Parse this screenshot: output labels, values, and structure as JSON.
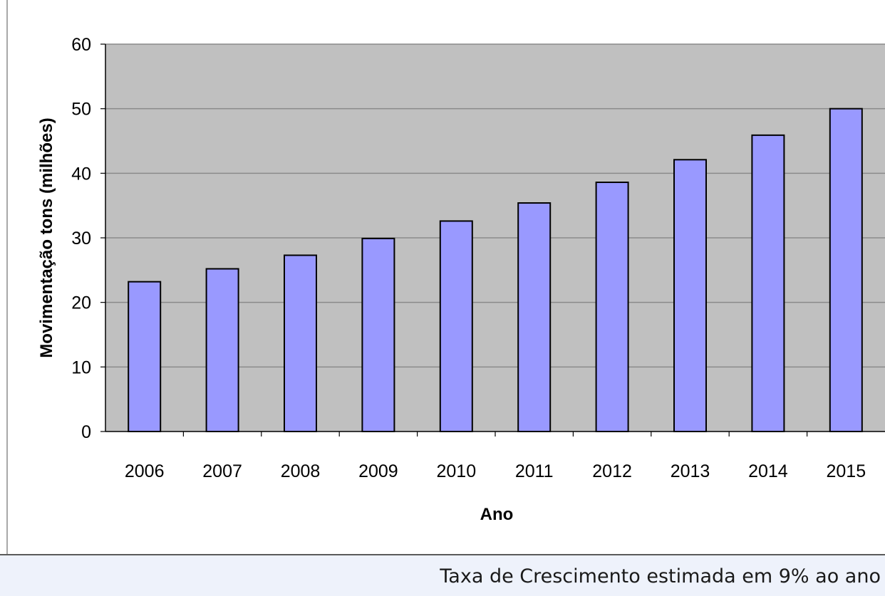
{
  "chart_data": {
    "type": "bar",
    "title": "",
    "xlabel": "Ano",
    "ylabel": "Movimentação tons (milhões)",
    "categories": [
      "2006",
      "2007",
      "2008",
      "2009",
      "2010",
      "2011",
      "2012",
      "2013",
      "2014",
      "2015"
    ],
    "values": [
      23.2,
      25.2,
      27.3,
      29.9,
      32.6,
      35.4,
      38.6,
      42.1,
      45.9,
      50.0
    ],
    "ylim": [
      0,
      60
    ],
    "yticks": [
      "0",
      "10",
      "20",
      "30",
      "40",
      "50",
      "60"
    ],
    "grid": true,
    "colors": {
      "plot_background": "#c0c0c0",
      "bar_fill": "#9999ff",
      "bar_stroke": "#000000",
      "gridline": "#8a8a8a"
    }
  },
  "footer": {
    "note": "Taxa de Crescimento estimada em 9% ao ano"
  }
}
